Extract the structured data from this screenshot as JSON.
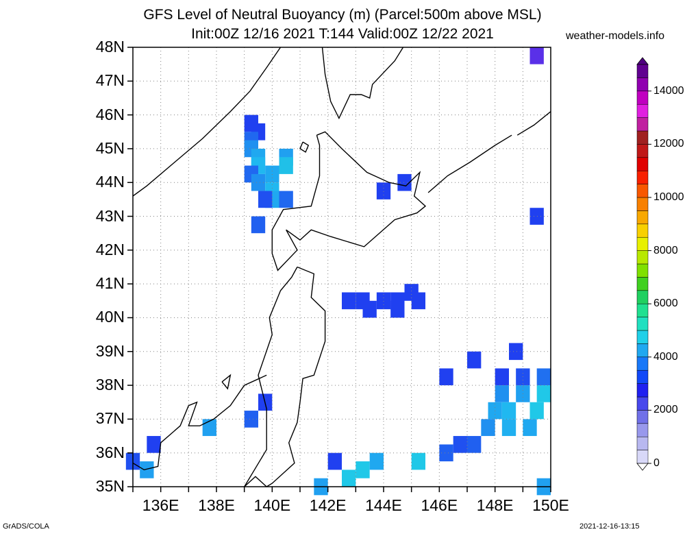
{
  "title_line1": "GFS Level of Neutral Buoyancy (m) (Parcel:500m above MSL)",
  "title_line2": "Init:00Z 12/16 2021 T:144 Valid:00Z 12/22 2021",
  "website": "weather-models.info",
  "footer_left": "GrADS/COLA",
  "footer_right": "2021-12-16-13:15",
  "lat_labels": [
    "48N",
    "47N",
    "46N",
    "45N",
    "44N",
    "43N",
    "42N",
    "41N",
    "40N",
    "39N",
    "38N",
    "37N",
    "36N",
    "35N"
  ],
  "lon_labels": [
    "136E",
    "138E",
    "140E",
    "142E",
    "144E",
    "146E",
    "148E",
    "150E"
  ],
  "colorbar": {
    "ticks": [
      "14000",
      "12000",
      "10000",
      "8000",
      "6000",
      "4000",
      "2000",
      "0"
    ],
    "colors": [
      "#d8d8f8",
      "#b8b8f0",
      "#9898ec",
      "#7070e8",
      "#4848ec",
      "#2020f0",
      "#1048f8",
      "#1878f8",
      "#20a8f0",
      "#20d0e8",
      "#20e0c0",
      "#20e090",
      "#20d060",
      "#40d020",
      "#80e000",
      "#b8e800",
      "#e8f000",
      "#f8d000",
      "#f8a800",
      "#f88000",
      "#f85800",
      "#f82000",
      "#e00000",
      "#c01818",
      "#a02020",
      "#c020a0",
      "#e020e0",
      "#c000c0",
      "#9000b0",
      "#600090"
    ],
    "overflow_color": "#500080",
    "underflow_color": "#ffffff"
  },
  "map": {
    "lon_range": [
      135,
      150
    ],
    "lat_range": [
      35,
      48
    ],
    "grid": "dotted",
    "blob_cells": [
      [
        139.25,
        45.75,
        "#2040f0"
      ],
      [
        139.5,
        45.5,
        "#2040f0"
      ],
      [
        139.25,
        45.25,
        "#2068f0"
      ],
      [
        139.25,
        45.0,
        "#2090f0"
      ],
      [
        139.5,
        44.75,
        "#20a8f0"
      ],
      [
        139.5,
        44.5,
        "#20b8f0"
      ],
      [
        140.0,
        44.25,
        "#20a8f0"
      ],
      [
        140.5,
        44.75,
        "#20a0f0"
      ],
      [
        140.5,
        44.5,
        "#20c0e8"
      ],
      [
        139.25,
        44.25,
        "#2068f0"
      ],
      [
        139.5,
        44.0,
        "#2090f0"
      ],
      [
        140.0,
        43.75,
        "#20b8f0"
      ],
      [
        140.0,
        43.5,
        "#20a8f0"
      ],
      [
        139.75,
        43.5,
        "#2050f0"
      ],
      [
        140.5,
        43.5,
        "#2068f0"
      ],
      [
        139.5,
        42.75,
        "#2060f0"
      ],
      [
        144.0,
        43.75,
        "#2040f0"
      ],
      [
        144.75,
        44.0,
        "#2040f0"
      ],
      [
        149.5,
        47.75,
        "#5a30e8"
      ],
      [
        149.5,
        43.0,
        "#2040f0"
      ],
      [
        142.75,
        40.5,
        "#2040f0"
      ],
      [
        143.25,
        40.5,
        "#2040f0"
      ],
      [
        143.5,
        40.25,
        "#2040f0"
      ],
      [
        144.0,
        40.5,
        "#2040f0"
      ],
      [
        144.5,
        40.5,
        "#2040f0"
      ],
      [
        144.5,
        40.25,
        "#2040f0"
      ],
      [
        145.0,
        40.75,
        "#2040f0"
      ],
      [
        145.25,
        40.5,
        "#2040f0"
      ],
      [
        147.25,
        38.75,
        "#2040f0"
      ],
      [
        148.75,
        39.0,
        "#2040f0"
      ],
      [
        146.25,
        38.25,
        "#2040f0"
      ],
      [
        148.25,
        38.25,
        "#2040f0"
      ],
      [
        149.0,
        38.25,
        "#2050f0"
      ],
      [
        149.75,
        38.25,
        "#2070f0"
      ],
      [
        148.25,
        37.75,
        "#2090f0"
      ],
      [
        149.0,
        37.75,
        "#20a0f0"
      ],
      [
        149.75,
        37.75,
        "#20c8e8"
      ],
      [
        148.0,
        37.25,
        "#20a8f0"
      ],
      [
        148.5,
        37.25,
        "#20b8f0"
      ],
      [
        149.5,
        37.25,
        "#20c8e8"
      ],
      [
        147.75,
        36.75,
        "#2090f0"
      ],
      [
        148.5,
        36.75,
        "#20b0f0"
      ],
      [
        149.25,
        36.75,
        "#20a8f0"
      ],
      [
        147.25,
        36.25,
        "#2060f0"
      ],
      [
        146.75,
        36.25,
        "#2050f0"
      ],
      [
        146.25,
        36.0,
        "#2060f0"
      ],
      [
        139.75,
        37.5,
        "#2040f0"
      ],
      [
        139.25,
        37.0,
        "#2060f0"
      ],
      [
        137.75,
        36.75,
        "#20a0f0"
      ],
      [
        135.75,
        36.25,
        "#2040f0"
      ],
      [
        135.0,
        35.75,
        "#2050f0"
      ],
      [
        135.5,
        35.5,
        "#20a0f0"
      ],
      [
        142.25,
        35.75,
        "#2040f0"
      ],
      [
        143.25,
        35.5,
        "#20c8e8"
      ],
      [
        143.75,
        35.75,
        "#20a8f0"
      ],
      [
        145.25,
        35.75,
        "#20c8e8"
      ],
      [
        142.75,
        35.25,
        "#20c8e8"
      ],
      [
        141.75,
        35.0,
        "#20a0f0"
      ],
      [
        149.75,
        35.0,
        "#20a0f0"
      ]
    ],
    "coastlines": [
      [
        [
          135.0,
          43.6
        ],
        [
          135.5,
          43.9
        ],
        [
          136.5,
          44.6
        ],
        [
          137.5,
          45.3
        ],
        [
          138.5,
          46.1
        ],
        [
          139.2,
          46.7
        ],
        [
          139.8,
          47.4
        ],
        [
          140.3,
          48.0
        ]
      ],
      [
        [
          141.8,
          48.0
        ],
        [
          141.9,
          47.2
        ],
        [
          142.1,
          46.4
        ],
        [
          142.4,
          45.9
        ],
        [
          142.8,
          46.6
        ],
        [
          143.2,
          46.6
        ],
        [
          143.5,
          46.5
        ],
        [
          143.6,
          46.9
        ],
        [
          144.4,
          47.6
        ],
        [
          144.7,
          48.0
        ]
      ],
      [
        [
          141.6,
          45.4
        ],
        [
          141.9,
          45.5
        ],
        [
          142.5,
          45.0
        ],
        [
          143.4,
          44.3
        ],
        [
          144.2,
          44.0
        ],
        [
          144.8,
          43.9
        ],
        [
          145.3,
          44.3
        ],
        [
          145.1,
          43.6
        ],
        [
          145.5,
          43.3
        ],
        [
          145.2,
          43.1
        ],
        [
          144.4,
          42.9
        ],
        [
          143.3,
          42.1
        ],
        [
          142.1,
          42.4
        ],
        [
          141.4,
          42.6
        ],
        [
          141.0,
          42.3
        ],
        [
          140.5,
          42.6
        ],
        [
          140.9,
          42.0
        ],
        [
          140.2,
          41.4
        ],
        [
          140.0,
          41.9
        ],
        [
          140.0,
          42.6
        ],
        [
          140.4,
          43.2
        ],
        [
          141.4,
          43.3
        ],
        [
          141.7,
          44.2
        ],
        [
          141.7,
          45.1
        ],
        [
          141.6,
          45.4
        ]
      ],
      [
        [
          140.9,
          41.5
        ],
        [
          141.5,
          41.3
        ],
        [
          141.4,
          40.6
        ],
        [
          141.9,
          40.2
        ],
        [
          141.9,
          39.3
        ],
        [
          141.5,
          38.3
        ],
        [
          141.1,
          38.2
        ],
        [
          141.0,
          37.5
        ],
        [
          140.9,
          36.9
        ],
        [
          140.6,
          36.3
        ],
        [
          140.8,
          35.7
        ],
        [
          140.0,
          35.1
        ],
        [
          139.8,
          35.0
        ],
        [
          139.4,
          35.3
        ],
        [
          139.0,
          35.0
        ]
      ],
      [
        [
          139.0,
          35.0
        ],
        [
          139.8,
          36.1
        ],
        [
          139.8,
          37.3
        ],
        [
          139.5,
          38.3
        ],
        [
          140.0,
          39.5
        ],
        [
          139.9,
          40.0
        ],
        [
          140.3,
          40.8
        ],
        [
          140.7,
          41.2
        ],
        [
          140.9,
          41.5
        ]
      ],
      [
        [
          135.0,
          35.7
        ],
        [
          135.4,
          35.5
        ],
        [
          135.9,
          35.6
        ],
        [
          136.0,
          36.3
        ],
        [
          136.7,
          36.8
        ],
        [
          137.0,
          37.4
        ],
        [
          137.3,
          37.5
        ],
        [
          137.0,
          36.8
        ],
        [
          137.4,
          36.8
        ],
        [
          137.9,
          37.0
        ],
        [
          138.5,
          37.4
        ],
        [
          139.0,
          38.0
        ],
        [
          139.8,
          38.3
        ]
      ],
      [
        [
          148.8,
          45.4
        ],
        [
          149.4,
          45.7
        ],
        [
          150.0,
          46.1
        ]
      ],
      [
        [
          145.6,
          43.7
        ],
        [
          146.3,
          44.2
        ],
        [
          147.1,
          44.6
        ],
        [
          148.0,
          45.1
        ],
        [
          148.6,
          45.4
        ]
      ],
      [
        [
          141.1,
          45.2
        ],
        [
          141.3,
          45.1
        ],
        [
          141.2,
          44.9
        ],
        [
          141.0,
          45.0
        ],
        [
          141.1,
          45.2
        ]
      ],
      [
        [
          138.2,
          38.1
        ],
        [
          138.5,
          38.3
        ],
        [
          138.4,
          37.9
        ],
        [
          138.2,
          38.1
        ]
      ]
    ]
  }
}
